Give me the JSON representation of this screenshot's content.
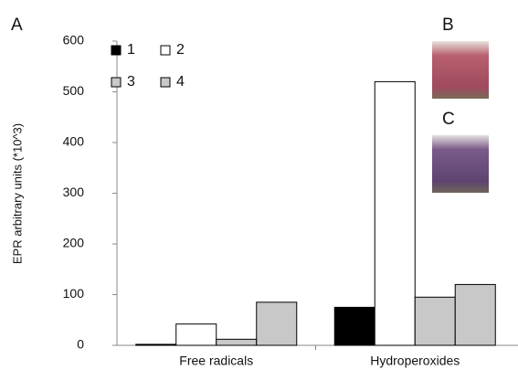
{
  "chart_data": {
    "type": "bar",
    "panel_labels": [
      "A",
      "B",
      "C"
    ],
    "y_label": "EPR arbitrary units (*10^3)",
    "categories": [
      "Free radicals",
      "Hydroperoxides"
    ],
    "series": [
      {
        "name": "1",
        "color": "#000000",
        "values": [
          2,
          75
        ]
      },
      {
        "name": "2",
        "color": "#ffffff",
        "values": [
          42,
          520
        ]
      },
      {
        "name": "3",
        "color": "#c8c8c8",
        "values": [
          12,
          95
        ]
      },
      {
        "name": "4",
        "color": "#c8c8c8",
        "values": [
          85,
          120
        ]
      }
    ],
    "ylim": [
      0,
      600
    ],
    "yticks": [
      0,
      100,
      200,
      300,
      400,
      500,
      600
    ],
    "legend": "upper left"
  }
}
